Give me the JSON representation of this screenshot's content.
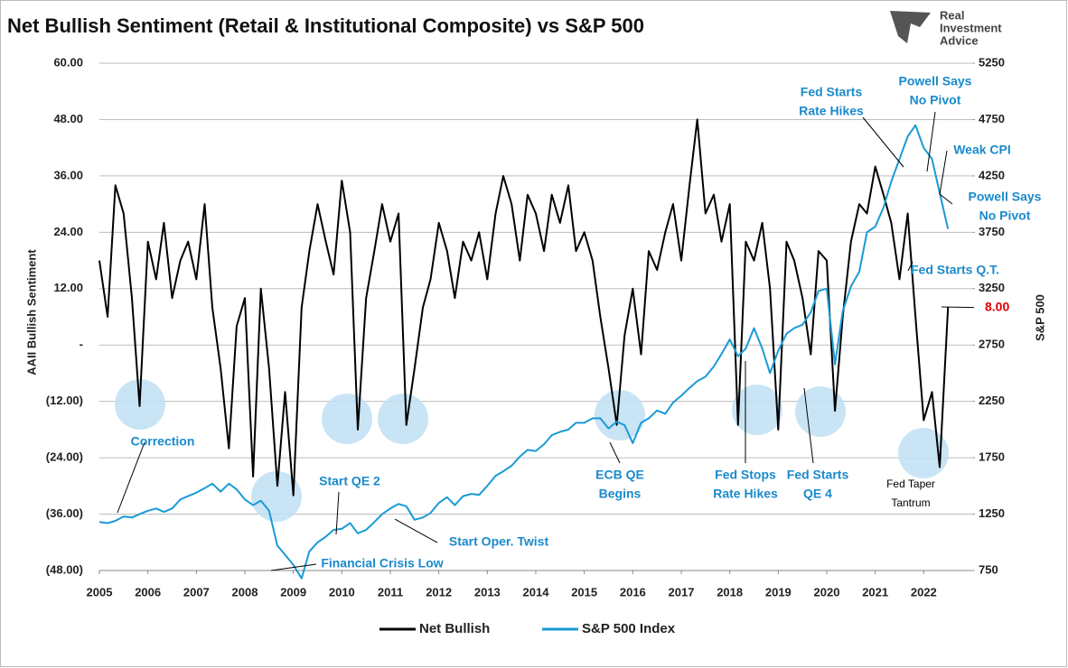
{
  "logo": [
    "Real",
    "Investment",
    "Advice"
  ],
  "chart_data": {
    "type": "line",
    "title": "Net Bullish Sentiment (Retail & Institutional Composite) vs S&P 500",
    "y_label": "AAII Bullish Sentiment",
    "y2_label": "S&P 500",
    "x": [
      2005.0,
      2005.17,
      2005.33,
      2005.5,
      2005.67,
      2005.83,
      2006.0,
      2006.17,
      2006.33,
      2006.5,
      2006.67,
      2006.83,
      2007.0,
      2007.17,
      2007.33,
      2007.5,
      2007.67,
      2007.83,
      2008.0,
      2008.17,
      2008.33,
      2008.5,
      2008.67,
      2008.83,
      2009.0,
      2009.17,
      2009.33,
      2009.5,
      2009.67,
      2009.83,
      2010.0,
      2010.17,
      2010.33,
      2010.5,
      2010.67,
      2010.83,
      2011.0,
      2011.17,
      2011.33,
      2011.5,
      2011.67,
      2011.83,
      2012.0,
      2012.17,
      2012.33,
      2012.5,
      2012.67,
      2012.83,
      2013.0,
      2013.17,
      2013.33,
      2013.5,
      2013.67,
      2013.83,
      2014.0,
      2014.17,
      2014.33,
      2014.5,
      2014.67,
      2014.83,
      2015.0,
      2015.17,
      2015.33,
      2015.5,
      2015.67,
      2015.83,
      2016.0,
      2016.17,
      2016.33,
      2016.5,
      2016.67,
      2016.83,
      2017.0,
      2017.17,
      2017.33,
      2017.5,
      2017.67,
      2017.83,
      2018.0,
      2018.17,
      2018.33,
      2018.5,
      2018.67,
      2018.83,
      2019.0,
      2019.17,
      2019.33,
      2019.5,
      2019.67,
      2019.83,
      2020.0,
      2020.17,
      2020.33,
      2020.5,
      2020.67,
      2020.83,
      2021.0,
      2021.17,
      2021.33,
      2021.5,
      2021.67,
      2021.83,
      2022.0,
      2022.17,
      2022.33,
      2022.5
    ],
    "series": [
      {
        "name": "Net Bullish",
        "color": "#000000",
        "values": [
          18,
          6,
          34,
          28,
          10,
          -13,
          22,
          14,
          26,
          10,
          18,
          22,
          14,
          30,
          8,
          -5,
          -22,
          4,
          10,
          -28,
          12,
          -5,
          -30,
          -10,
          -32,
          8,
          20,
          30,
          22,
          15,
          35,
          24,
          -18,
          10,
          20,
          30,
          22,
          28,
          -17,
          -5,
          8,
          14,
          26,
          20,
          10,
          22,
          18,
          24,
          14,
          28,
          36,
          30,
          18,
          32,
          28,
          20,
          32,
          26,
          34,
          20,
          24,
          18,
          6,
          -5,
          -17,
          2,
          12,
          -2,
          20,
          16,
          24,
          30,
          18,
          34,
          48,
          28,
          32,
          22,
          30,
          -17,
          22,
          18,
          26,
          12,
          -18,
          22,
          18,
          10,
          -2,
          20,
          18,
          -14,
          6,
          22,
          30,
          28,
          38,
          32,
          26,
          14,
          28,
          6,
          -16,
          -10,
          -26,
          8
        ]
      },
      {
        "name": "S&P 500 Index",
        "color": "#1a9ad6",
        "axis": "y2",
        "values": [
          1180,
          1170,
          1190,
          1230,
          1220,
          1250,
          1280,
          1300,
          1270,
          1300,
          1380,
          1410,
          1440,
          1480,
          1520,
          1450,
          1520,
          1470,
          1380,
          1330,
          1370,
          1280,
          970,
          890,
          800,
          680,
          920,
          1000,
          1050,
          1110,
          1120,
          1170,
          1080,
          1110,
          1180,
          1250,
          1300,
          1340,
          1320,
          1200,
          1220,
          1260,
          1350,
          1400,
          1330,
          1410,
          1430,
          1420,
          1500,
          1590,
          1630,
          1680,
          1760,
          1820,
          1810,
          1870,
          1950,
          1980,
          2000,
          2060,
          2060,
          2100,
          2100,
          2010,
          2070,
          2040,
          1880,
          2060,
          2100,
          2170,
          2140,
          2240,
          2300,
          2370,
          2430,
          2470,
          2560,
          2670,
          2800,
          2650,
          2720,
          2900,
          2720,
          2500,
          2700,
          2850,
          2900,
          2930,
          3040,
          3230,
          3250,
          2580,
          3050,
          3270,
          3400,
          3750,
          3800,
          3970,
          4200,
          4400,
          4600,
          4700,
          4500,
          4400,
          4100,
          3780
        ]
      }
    ],
    "xlim": [
      2005,
      2023
    ],
    "xticks": [
      2005,
      2006,
      2007,
      2008,
      2009,
      2010,
      2011,
      2012,
      2013,
      2014,
      2015,
      2016,
      2017,
      2018,
      2019,
      2020,
      2021,
      2022
    ],
    "ylim": [
      -48,
      60
    ],
    "yticks": [
      {
        "value": -48,
        "label": "(48.00)"
      },
      {
        "value": -36,
        "label": "(36.00)"
      },
      {
        "value": -24,
        "label": "(24.00)"
      },
      {
        "value": -12,
        "label": "(12.00)"
      },
      {
        "value": 0,
        "label": "-"
      },
      {
        "value": 12,
        "label": "12.00"
      },
      {
        "value": 24,
        "label": "24.00"
      },
      {
        "value": 36,
        "label": "36.00"
      },
      {
        "value": 48,
        "label": "48.00"
      },
      {
        "value": 60,
        "label": "60.00"
      }
    ],
    "y2lim": [
      750,
      5250
    ],
    "y2ticks": [
      750,
      1250,
      1750,
      2250,
      2750,
      3250,
      3750,
      4250,
      4750,
      5250
    ],
    "grid": true,
    "legend": "bottom",
    "callout": {
      "value": 8,
      "label": "8.00",
      "color": "#e00000"
    },
    "annotations": [
      {
        "lines": [
          "Correction"
        ],
        "color": "#1a8acb"
      },
      {
        "lines": [
          "Start QE 2"
        ],
        "color": "#1a8acb"
      },
      {
        "lines": [
          "Start Oper. Twist"
        ],
        "color": "#1a8acb"
      },
      {
        "lines": [
          "Financial Crisis Low"
        ],
        "color": "#1a8acb"
      },
      {
        "lines": [
          "ECB QE",
          "Begins"
        ],
        "color": "#1a8acb"
      },
      {
        "lines": [
          "Fed Stops",
          "Rate Hikes"
        ],
        "color": "#1a8acb"
      },
      {
        "lines": [
          "Fed Starts",
          "QE 4"
        ],
        "color": "#1a8acb"
      },
      {
        "lines": [
          "Fed Taper",
          "Tantrum"
        ],
        "color": "#000000"
      },
      {
        "lines": [
          "Fed Starts",
          "Rate Hikes"
        ],
        "color": "#1a8acb"
      },
      {
        "lines": [
          "Powell Says",
          "No Pivot"
        ],
        "color": "#1a8acb"
      },
      {
        "lines": [
          "Weak CPI"
        ],
        "color": "#1a8acb"
      },
      {
        "lines": [
          "Powell Says",
          "No Pivot"
        ],
        "color": "#1a8acb"
      },
      {
        "lines": [
          "Fed Starts Q.T."
        ],
        "color": "#1a8acb"
      }
    ]
  }
}
